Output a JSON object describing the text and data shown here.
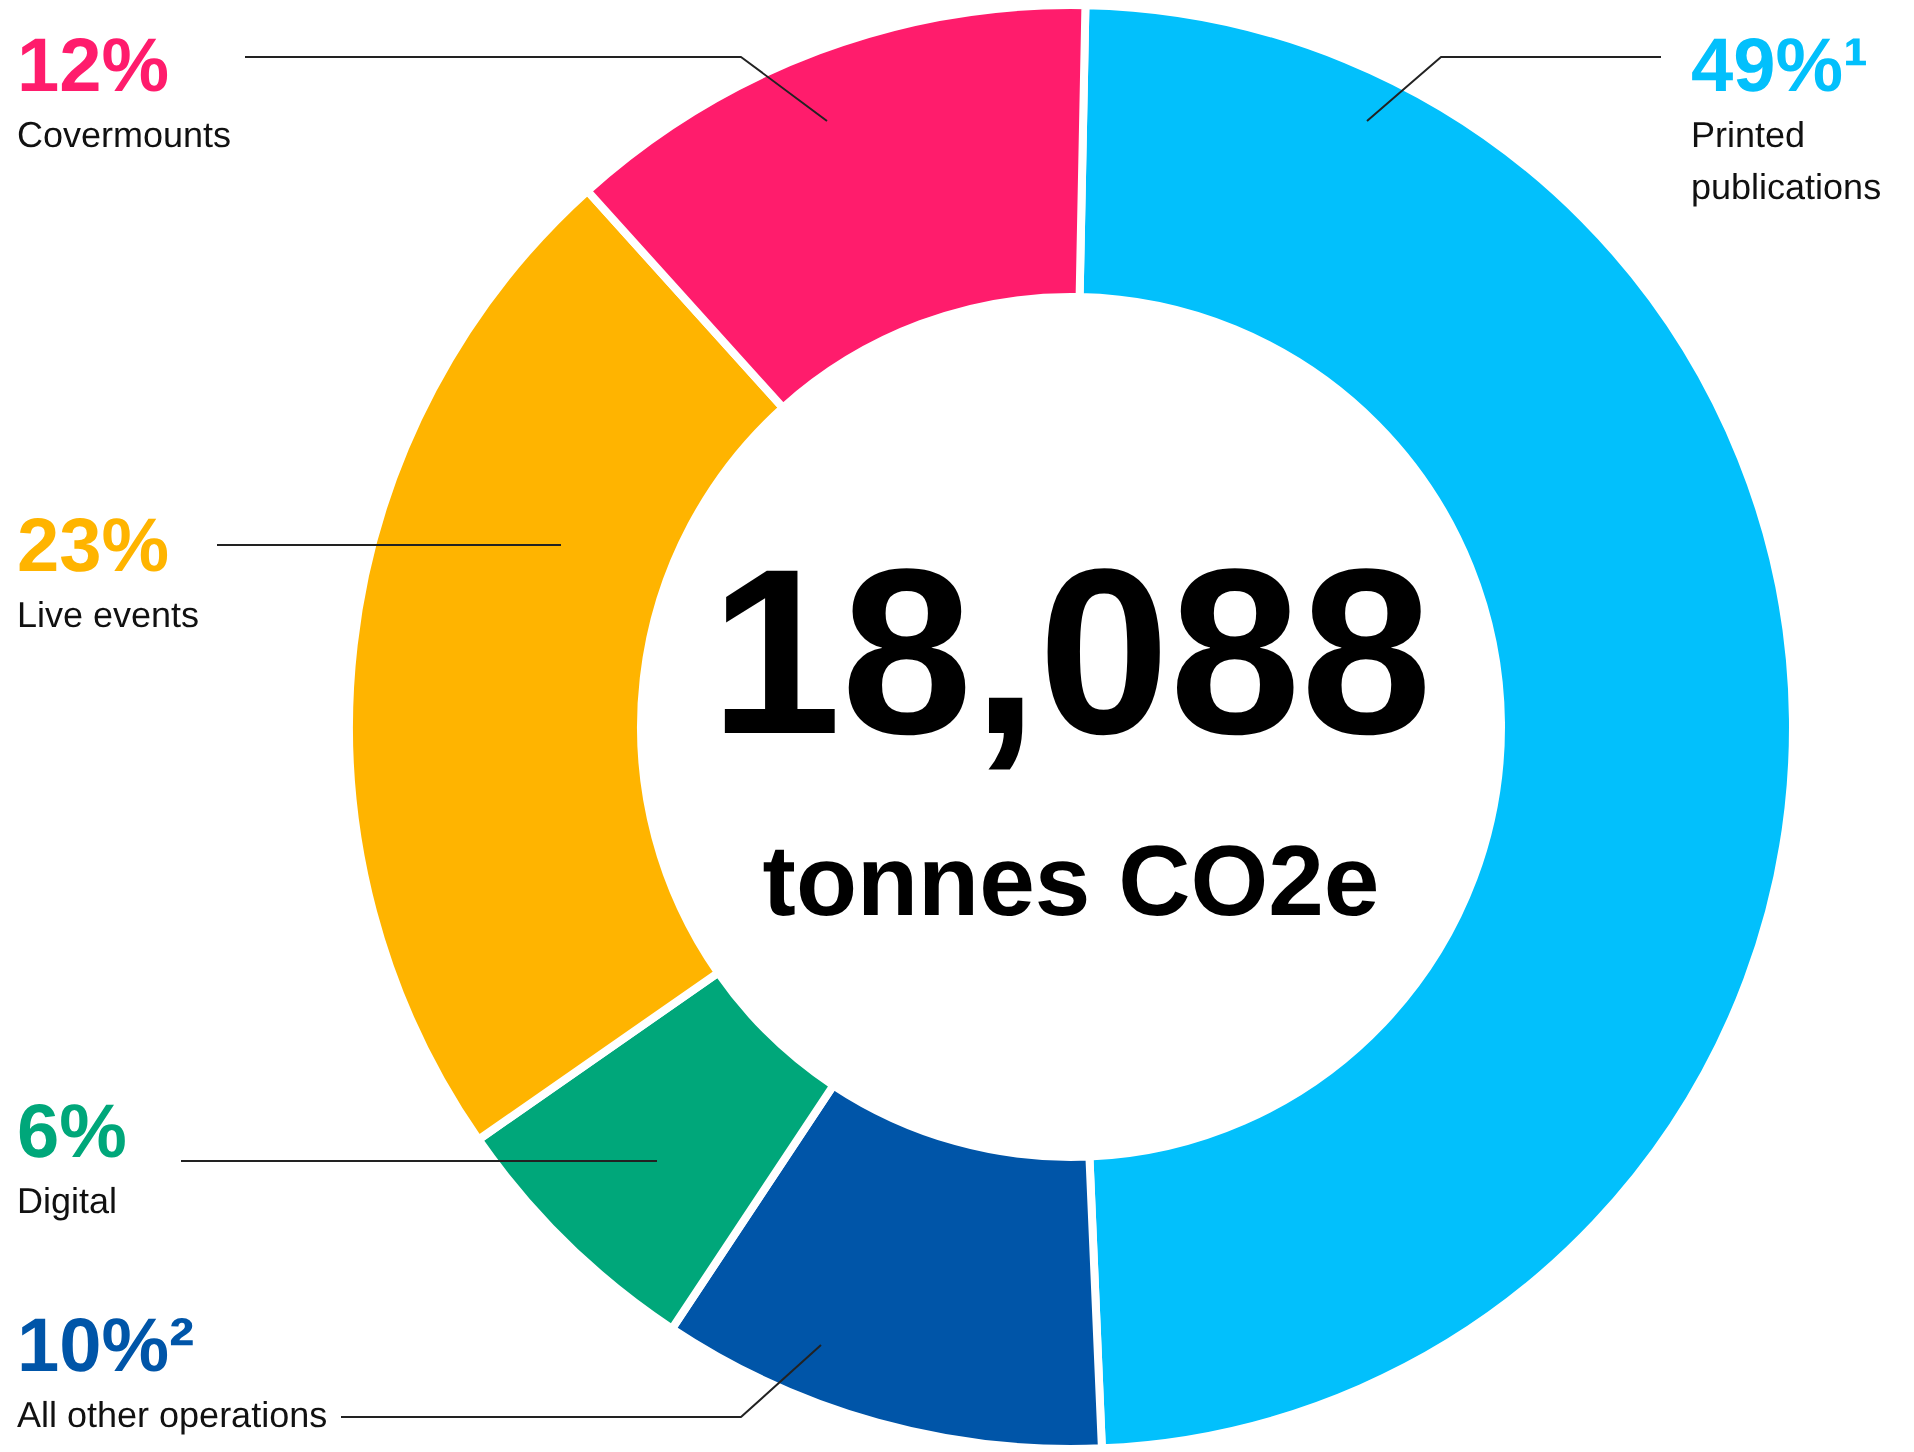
{
  "chart_data": {
    "type": "donut",
    "categories": [
      "Printed publications",
      "All other operations",
      "Digital",
      "Live events",
      "Covermounts"
    ],
    "values": [
      49,
      10,
      6,
      23,
      12
    ],
    "colors": [
      "#02c0fc",
      "#0055a8",
      "#00a77a",
      "#ffb400",
      "#ff1c6c"
    ],
    "value_labels": [
      "49%¹",
      "10%²",
      "6%",
      "23%",
      "12%"
    ],
    "annotations": [
      "18,088",
      "tonnes CO2e"
    ]
  }
}
